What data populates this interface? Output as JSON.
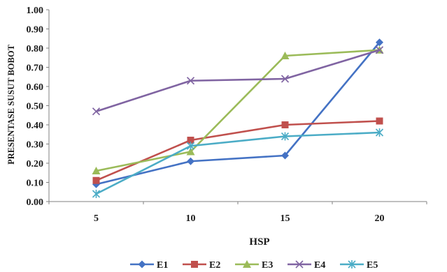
{
  "chart_data": {
    "type": "line",
    "title": "",
    "xlabel": "HSP",
    "ylabel": "PRESENTASE SUSUT BOBOT",
    "categories": [
      "5",
      "10",
      "15",
      "20"
    ],
    "ylim": [
      0,
      1
    ],
    "yticks": [
      "0.00",
      "0.10",
      "0.20",
      "0.30",
      "0.40",
      "0.50",
      "0.60",
      "0.70",
      "0.80",
      "0.90",
      "1.00"
    ],
    "grid": false,
    "legend_position": "bottom",
    "series": [
      {
        "name": "E1",
        "values": [
          0.09,
          0.21,
          0.24,
          0.83
        ],
        "color": "#4472C4",
        "marker": "diamond"
      },
      {
        "name": "E2",
        "values": [
          0.11,
          0.32,
          0.4,
          0.42
        ],
        "color": "#C0504D",
        "marker": "square"
      },
      {
        "name": "E3",
        "values": [
          0.16,
          0.26,
          0.76,
          0.79
        ],
        "color": "#9BBB59",
        "marker": "triangle"
      },
      {
        "name": "E4",
        "values": [
          0.47,
          0.63,
          0.64,
          0.79
        ],
        "color": "#8064A2",
        "marker": "x"
      },
      {
        "name": "E5",
        "values": [
          0.04,
          0.29,
          0.34,
          0.36
        ],
        "color": "#4BACC6",
        "marker": "asterisk"
      }
    ]
  }
}
